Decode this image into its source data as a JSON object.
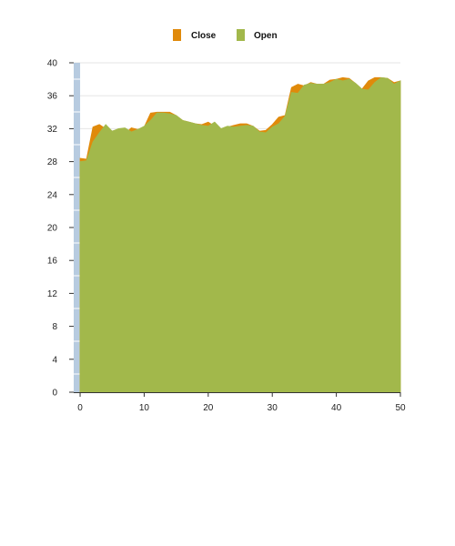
{
  "chart_data": {
    "type": "area",
    "xlim": [
      -1,
      50
    ],
    "ylim": [
      0,
      40
    ],
    "x_ticks": [
      "0",
      "10",
      "20",
      "30",
      "40",
      "50"
    ],
    "y_ticks": [
      "0",
      "4",
      "8",
      "12",
      "16",
      "20",
      "24",
      "28",
      "32",
      "36",
      "40"
    ],
    "grid": true,
    "legend_position": "top-center",
    "x": [
      0,
      1,
      2,
      3,
      4,
      5,
      6,
      7,
      8,
      9,
      10,
      11,
      12,
      13,
      14,
      15,
      16,
      17,
      18,
      19,
      20,
      21,
      22,
      23,
      24,
      25,
      26,
      27,
      28,
      29,
      30,
      31,
      32,
      33,
      34,
      35,
      36,
      37,
      38,
      39,
      40,
      41,
      42,
      43,
      44,
      45,
      46,
      47,
      48,
      49,
      50
    ],
    "series": [
      {
        "name": "Close",
        "color": "#e08a0b",
        "values": [
          28.4,
          28.3,
          32.2,
          32.5,
          32.0,
          31.7,
          31.9,
          31.4,
          32.1,
          31.9,
          32.2,
          33.9,
          34.0,
          34.0,
          34.0,
          33.6,
          33.0,
          32.8,
          32.6,
          32.5,
          32.8,
          32.3,
          31.9,
          32.2,
          32.4,
          32.6,
          32.6,
          32.3,
          31.7,
          31.8,
          32.5,
          33.4,
          33.6,
          37.0,
          37.4,
          37.2,
          37.6,
          37.4,
          37.4,
          37.9,
          38.0,
          38.2,
          38.1,
          37.5,
          36.8,
          37.8,
          38.2,
          38.2,
          38.1,
          37.6,
          37.8
        ]
      },
      {
        "name": "Open",
        "color": "#a2b84b",
        "values": [
          28.0,
          28.1,
          30.4,
          31.5,
          32.5,
          31.7,
          32.0,
          32.1,
          31.6,
          31.9,
          32.3,
          33.0,
          33.9,
          33.9,
          33.8,
          33.6,
          33.0,
          32.8,
          32.6,
          32.4,
          32.3,
          32.8,
          32.0,
          32.3,
          32.2,
          32.3,
          32.4,
          32.3,
          31.6,
          31.5,
          32.2,
          32.6,
          33.5,
          36.4,
          36.3,
          37.3,
          37.5,
          37.4,
          37.4,
          37.6,
          38.0,
          37.8,
          38.0,
          37.5,
          36.8,
          36.7,
          37.6,
          38.2,
          38.1,
          37.4,
          37.8
        ]
      }
    ],
    "navigator_color": "#b7cbe0"
  }
}
